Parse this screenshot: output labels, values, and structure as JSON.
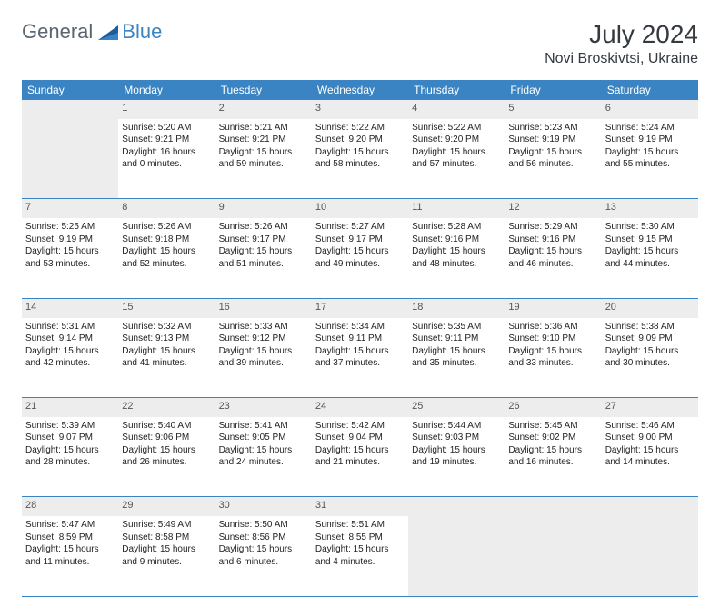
{
  "logo": {
    "general": "General",
    "blue": "Blue"
  },
  "title": "July 2024",
  "location": "Novi Broskivtsi, Ukraine",
  "colors": {
    "header_bg": "#3a84c4",
    "header_text": "#ffffff",
    "empty_bg": "#ededed",
    "border": "#3a84c4",
    "logo_gray": "#5b6670",
    "logo_blue": "#3a84c4",
    "title_color": "#343a40"
  },
  "weekdays": [
    "Sunday",
    "Monday",
    "Tuesday",
    "Wednesday",
    "Thursday",
    "Friday",
    "Saturday"
  ],
  "weeks": [
    [
      null,
      {
        "n": "1",
        "sr": "Sunrise: 5:20 AM",
        "ss": "Sunset: 9:21 PM",
        "dl": "Daylight: 16 hours and 0 minutes."
      },
      {
        "n": "2",
        "sr": "Sunrise: 5:21 AM",
        "ss": "Sunset: 9:21 PM",
        "dl": "Daylight: 15 hours and 59 minutes."
      },
      {
        "n": "3",
        "sr": "Sunrise: 5:22 AM",
        "ss": "Sunset: 9:20 PM",
        "dl": "Daylight: 15 hours and 58 minutes."
      },
      {
        "n": "4",
        "sr": "Sunrise: 5:22 AM",
        "ss": "Sunset: 9:20 PM",
        "dl": "Daylight: 15 hours and 57 minutes."
      },
      {
        "n": "5",
        "sr": "Sunrise: 5:23 AM",
        "ss": "Sunset: 9:19 PM",
        "dl": "Daylight: 15 hours and 56 minutes."
      },
      {
        "n": "6",
        "sr": "Sunrise: 5:24 AM",
        "ss": "Sunset: 9:19 PM",
        "dl": "Daylight: 15 hours and 55 minutes."
      }
    ],
    [
      {
        "n": "7",
        "sr": "Sunrise: 5:25 AM",
        "ss": "Sunset: 9:19 PM",
        "dl": "Daylight: 15 hours and 53 minutes."
      },
      {
        "n": "8",
        "sr": "Sunrise: 5:26 AM",
        "ss": "Sunset: 9:18 PM",
        "dl": "Daylight: 15 hours and 52 minutes."
      },
      {
        "n": "9",
        "sr": "Sunrise: 5:26 AM",
        "ss": "Sunset: 9:17 PM",
        "dl": "Daylight: 15 hours and 51 minutes."
      },
      {
        "n": "10",
        "sr": "Sunrise: 5:27 AM",
        "ss": "Sunset: 9:17 PM",
        "dl": "Daylight: 15 hours and 49 minutes."
      },
      {
        "n": "11",
        "sr": "Sunrise: 5:28 AM",
        "ss": "Sunset: 9:16 PM",
        "dl": "Daylight: 15 hours and 48 minutes."
      },
      {
        "n": "12",
        "sr": "Sunrise: 5:29 AM",
        "ss": "Sunset: 9:16 PM",
        "dl": "Daylight: 15 hours and 46 minutes."
      },
      {
        "n": "13",
        "sr": "Sunrise: 5:30 AM",
        "ss": "Sunset: 9:15 PM",
        "dl": "Daylight: 15 hours and 44 minutes."
      }
    ],
    [
      {
        "n": "14",
        "sr": "Sunrise: 5:31 AM",
        "ss": "Sunset: 9:14 PM",
        "dl": "Daylight: 15 hours and 42 minutes."
      },
      {
        "n": "15",
        "sr": "Sunrise: 5:32 AM",
        "ss": "Sunset: 9:13 PM",
        "dl": "Daylight: 15 hours and 41 minutes."
      },
      {
        "n": "16",
        "sr": "Sunrise: 5:33 AM",
        "ss": "Sunset: 9:12 PM",
        "dl": "Daylight: 15 hours and 39 minutes."
      },
      {
        "n": "17",
        "sr": "Sunrise: 5:34 AM",
        "ss": "Sunset: 9:11 PM",
        "dl": "Daylight: 15 hours and 37 minutes."
      },
      {
        "n": "18",
        "sr": "Sunrise: 5:35 AM",
        "ss": "Sunset: 9:11 PM",
        "dl": "Daylight: 15 hours and 35 minutes."
      },
      {
        "n": "19",
        "sr": "Sunrise: 5:36 AM",
        "ss": "Sunset: 9:10 PM",
        "dl": "Daylight: 15 hours and 33 minutes."
      },
      {
        "n": "20",
        "sr": "Sunrise: 5:38 AM",
        "ss": "Sunset: 9:09 PM",
        "dl": "Daylight: 15 hours and 30 minutes."
      }
    ],
    [
      {
        "n": "21",
        "sr": "Sunrise: 5:39 AM",
        "ss": "Sunset: 9:07 PM",
        "dl": "Daylight: 15 hours and 28 minutes."
      },
      {
        "n": "22",
        "sr": "Sunrise: 5:40 AM",
        "ss": "Sunset: 9:06 PM",
        "dl": "Daylight: 15 hours and 26 minutes."
      },
      {
        "n": "23",
        "sr": "Sunrise: 5:41 AM",
        "ss": "Sunset: 9:05 PM",
        "dl": "Daylight: 15 hours and 24 minutes."
      },
      {
        "n": "24",
        "sr": "Sunrise: 5:42 AM",
        "ss": "Sunset: 9:04 PM",
        "dl": "Daylight: 15 hours and 21 minutes."
      },
      {
        "n": "25",
        "sr": "Sunrise: 5:44 AM",
        "ss": "Sunset: 9:03 PM",
        "dl": "Daylight: 15 hours and 19 minutes."
      },
      {
        "n": "26",
        "sr": "Sunrise: 5:45 AM",
        "ss": "Sunset: 9:02 PM",
        "dl": "Daylight: 15 hours and 16 minutes."
      },
      {
        "n": "27",
        "sr": "Sunrise: 5:46 AM",
        "ss": "Sunset: 9:00 PM",
        "dl": "Daylight: 15 hours and 14 minutes."
      }
    ],
    [
      {
        "n": "28",
        "sr": "Sunrise: 5:47 AM",
        "ss": "Sunset: 8:59 PM",
        "dl": "Daylight: 15 hours and 11 minutes."
      },
      {
        "n": "29",
        "sr": "Sunrise: 5:49 AM",
        "ss": "Sunset: 8:58 PM",
        "dl": "Daylight: 15 hours and 9 minutes."
      },
      {
        "n": "30",
        "sr": "Sunrise: 5:50 AM",
        "ss": "Sunset: 8:56 PM",
        "dl": "Daylight: 15 hours and 6 minutes."
      },
      {
        "n": "31",
        "sr": "Sunrise: 5:51 AM",
        "ss": "Sunset: 8:55 PM",
        "dl": "Daylight: 15 hours and 4 minutes."
      },
      null,
      null,
      null
    ]
  ]
}
